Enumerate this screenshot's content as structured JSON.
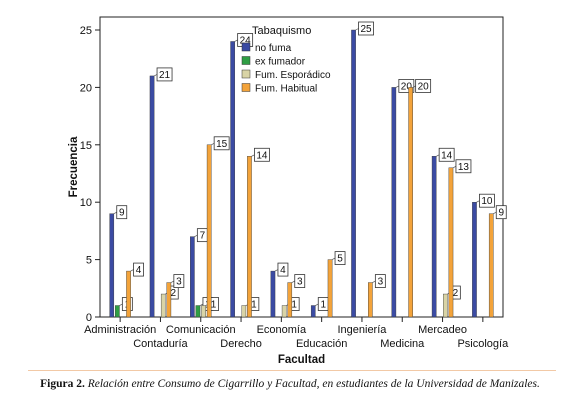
{
  "chart_data": {
    "type": "bar",
    "xlabel": "Facultad",
    "ylabel": "Frecuencia",
    "ylim": [
      0,
      25
    ],
    "yticks": [
      0,
      5,
      10,
      15,
      20,
      25
    ],
    "legend": {
      "title": "Tabaquismo",
      "placement": "top-center"
    },
    "categories": [
      "Administración",
      "Contaduría",
      "Comunicación",
      "Derecho",
      "Economía",
      "Educación",
      "Ingeniería",
      "Medicina",
      "Mercadeo",
      "Psicología"
    ],
    "series": [
      {
        "name": "no fuma",
        "color": "#3b4ba3",
        "values": [
          9,
          21,
          7,
          24,
          4,
          1,
          25,
          20,
          14,
          10
        ]
      },
      {
        "name": "ex fumador",
        "color": "#2f9e44",
        "values": [
          1,
          null,
          1,
          null,
          null,
          null,
          null,
          null,
          null,
          null
        ]
      },
      {
        "name": "Fum. Esporádico",
        "color": "#d9d4a6",
        "values": [
          null,
          2,
          1,
          1,
          1,
          null,
          null,
          null,
          2,
          null
        ]
      },
      {
        "name": "Fum. Habitual",
        "color": "#f3a33a",
        "values": [
          4,
          3,
          15,
          14,
          3,
          5,
          3,
          20,
          13,
          9
        ]
      }
    ]
  },
  "caption": {
    "label": "Figura 2.",
    "text": "Relación entre Consumo de Cigarrillo y Facultad, en estudiantes de la Universidad de Manizales."
  }
}
